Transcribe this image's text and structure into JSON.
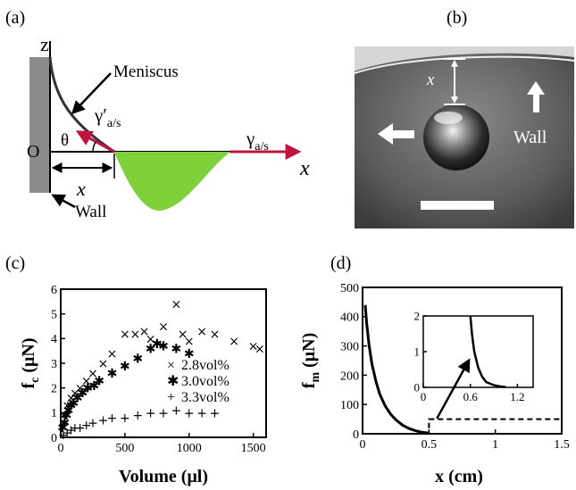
{
  "panels": {
    "a": {
      "label": "(a)",
      "axis_z": "z",
      "origin": "O",
      "axis_x": "x",
      "meniscus_label": "Meniscus",
      "angle_label": "θ",
      "gamma_prime_label": "γ′",
      "gamma_prime_sub": "a/s",
      "gamma_label": "γ",
      "gamma_sub": "a/s",
      "distance_label": "x",
      "wall_label": "Wall",
      "colors": {
        "arrow": "#c0143c",
        "drop": "#7fd13b",
        "wall": "#8c8c8c"
      }
    },
    "b": {
      "label": "(b)",
      "distance_label": "x",
      "wall_label": "Wall"
    }
  },
  "chart_data": [
    {
      "panel_label": "(c)",
      "type": "scatter",
      "xlabel": "Volume (μl)",
      "ylabel_main": "f",
      "ylabel_sub": "c",
      "ylabel_unit": " (μN)",
      "xlim": [
        0,
        1600
      ],
      "ylim": [
        0,
        6
      ],
      "xticks": [
        "0",
        "500",
        "1000",
        "1500"
      ],
      "yticks": [
        "0",
        "1",
        "2",
        "3",
        "4",
        "5",
        "6"
      ],
      "grid": false,
      "legend_position": "middle-right",
      "series": [
        {
          "name": "2.8vol%",
          "marker": "×",
          "points": [
            [
              20,
              0.9
            ],
            [
              50,
              1.3
            ],
            [
              80,
              1.6
            ],
            [
              110,
              1.8
            ],
            [
              150,
              2.0
            ],
            [
              200,
              2.3
            ],
            [
              250,
              2.6
            ],
            [
              330,
              3.0
            ],
            [
              400,
              3.4
            ],
            [
              500,
              4.2
            ],
            [
              580,
              4.2
            ],
            [
              650,
              4.3
            ],
            [
              700,
              4.0
            ],
            [
              800,
              4.5
            ],
            [
              900,
              5.4
            ],
            [
              950,
              4.2
            ],
            [
              1000,
              3.9
            ],
            [
              1100,
              4.3
            ],
            [
              1200,
              4.2
            ],
            [
              1350,
              3.9
            ],
            [
              1500,
              3.7
            ],
            [
              1550,
              3.6
            ]
          ]
        },
        {
          "name": "3.0vol%",
          "marker": "✱",
          "points": [
            [
              15,
              0.4
            ],
            [
              30,
              0.6
            ],
            [
              45,
              0.9
            ],
            [
              60,
              1.1
            ],
            [
              80,
              1.3
            ],
            [
              100,
              1.4
            ],
            [
              130,
              1.6
            ],
            [
              170,
              1.8
            ],
            [
              210,
              2.0
            ],
            [
              260,
              2.1
            ],
            [
              300,
              2.3
            ],
            [
              400,
              2.6
            ],
            [
              500,
              2.9
            ],
            [
              600,
              3.2
            ],
            [
              700,
              3.6
            ],
            [
              750,
              3.8
            ],
            [
              800,
              3.7
            ],
            [
              900,
              3.6
            ],
            [
              1000,
              3.4
            ]
          ]
        },
        {
          "name": "3.3vol%",
          "marker": "+",
          "points": [
            [
              20,
              0.1
            ],
            [
              50,
              0.2
            ],
            [
              80,
              0.3
            ],
            [
              110,
              0.4
            ],
            [
              150,
              0.4
            ],
            [
              200,
              0.5
            ],
            [
              250,
              0.6
            ],
            [
              330,
              0.7
            ],
            [
              400,
              0.8
            ],
            [
              500,
              0.8
            ],
            [
              600,
              0.9
            ],
            [
              700,
              1.0
            ],
            [
              800,
              1.0
            ],
            [
              900,
              1.1
            ],
            [
              1000,
              1.0
            ],
            [
              1100,
              1.0
            ],
            [
              1200,
              1.0
            ]
          ]
        }
      ]
    },
    {
      "panel_label": "(d)",
      "type": "line",
      "xlabel": "x (cm)",
      "ylabel_main": "f",
      "ylabel_sub": "m",
      "ylabel_unit": " (μN)",
      "xlim": [
        0,
        1.5
      ],
      "ylim": [
        0,
        500
      ],
      "xticks": [
        "0",
        "0.5",
        "1",
        "1.5"
      ],
      "yticks": [
        "0",
        "100",
        "200",
        "300",
        "400",
        "500"
      ],
      "grid": false,
      "series": [
        {
          "points": [
            [
              0.02,
              440
            ],
            [
              0.03,
              380
            ],
            [
              0.05,
              300
            ],
            [
              0.07,
              240
            ],
            [
              0.1,
              180
            ],
            [
              0.13,
              135
            ],
            [
              0.17,
              95
            ],
            [
              0.21,
              68
            ],
            [
              0.25,
              48
            ],
            [
              0.3,
              30
            ],
            [
              0.35,
              18
            ],
            [
              0.4,
              10
            ],
            [
              0.45,
              5
            ],
            [
              0.5,
              2
            ]
          ]
        }
      ],
      "zoom_box": {
        "xlim": [
          0.5,
          1.5
        ],
        "ylim": [
          0,
          50
        ]
      },
      "inset": {
        "xlim": [
          0,
          1.4
        ],
        "ylim": [
          0,
          2
        ],
        "xticks": [
          "0",
          "0.6",
          "1.2"
        ],
        "yticks": [
          "0",
          "1",
          "2"
        ],
        "points": [
          [
            0.6,
            2.0
          ],
          [
            0.62,
            1.5
          ],
          [
            0.65,
            1.0
          ],
          [
            0.7,
            0.55
          ],
          [
            0.75,
            0.3
          ],
          [
            0.8,
            0.15
          ],
          [
            0.9,
            0.06
          ],
          [
            1.0,
            0.02
          ],
          [
            1.05,
            0.01
          ]
        ]
      }
    }
  ]
}
